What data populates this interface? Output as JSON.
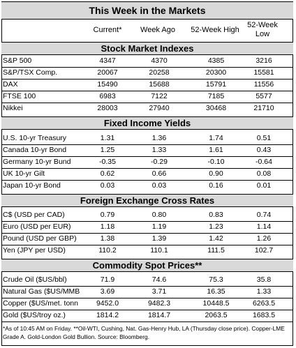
{
  "title": "This Week in the Markets",
  "columns": [
    "Current*",
    "Week Ago",
    "52-Week High",
    "52-Week",
    "Low"
  ],
  "sections": [
    {
      "title": "Stock Market Indexes",
      "rows": [
        [
          "S&P 500",
          "4347",
          "4370",
          "4385",
          "3216"
        ],
        [
          "S&P/TSX Comp.",
          "20067",
          "20258",
          "20300",
          "15581"
        ],
        [
          "DAX",
          "15490",
          "15688",
          "15791",
          "11556"
        ],
        [
          "FTSE 100",
          "6983",
          "7122",
          "7185",
          "5577"
        ],
        [
          "Nikkei",
          "28003",
          "27940",
          "30468",
          "21710"
        ]
      ]
    },
    {
      "title": "Fixed Income Yields",
      "rows": [
        [
          "U.S. 10-yr Treasury",
          "1.31",
          "1.36",
          "1.74",
          "0.51"
        ],
        [
          "Canada 10-yr Bond",
          "1.25",
          "1.33",
          "1.61",
          "0.43"
        ],
        [
          "Germany 10-yr Bund",
          "-0.35",
          "-0.29",
          "-0.10",
          "-0.64"
        ],
        [
          "UK 10-yr Gilt",
          "0.62",
          "0.66",
          "0.90",
          "0.08"
        ],
        [
          "Japan 10-yr Bond",
          "0.03",
          "0.03",
          "0.16",
          "0.01"
        ]
      ]
    },
    {
      "title": "Foreign Exchange Cross Rates",
      "rows": [
        [
          "C$ (USD per CAD)",
          "0.79",
          "0.80",
          "0.83",
          "0.74"
        ],
        [
          "Euro (USD per EUR)",
          "1.18",
          "1.19",
          "1.23",
          "1.14"
        ],
        [
          "Pound (USD per GBP)",
          "1.38",
          "1.39",
          "1.42",
          "1.26"
        ],
        [
          "Yen (JPY per USD)",
          "110.2",
          "110.1",
          "111.5",
          "102.7"
        ]
      ]
    },
    {
      "title": "Commodity Spot Prices**",
      "rows": [
        [
          "Crude Oil  ($US/bbl)",
          "71.9",
          "74.6",
          "75.3",
          "35.8"
        ],
        [
          "Natural Gas ($US/MMB",
          "3.69",
          "3.71",
          "16.35",
          "1.33"
        ],
        [
          "Copper ($US/met. tonn",
          "9452.0",
          "9482.3",
          "10448.5",
          "6263.5"
        ],
        [
          "Gold ($US/troy oz.)",
          "1814.2",
          "1814.7",
          "2063.5",
          "1683.5"
        ]
      ]
    }
  ],
  "footnote": "*As of 10:45 AM on Friday. **Oil-WTI, Cushing, Nat. Gas-Henry Hub, LA (Thursday close price). Copper-LME Grade A. Gold-London Gold Bullion. Source: Bloomberg."
}
